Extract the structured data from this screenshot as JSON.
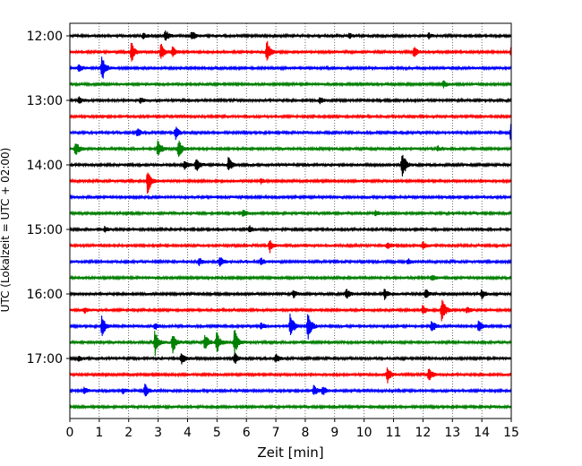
{
  "chart_data": {
    "type": "line",
    "title": "",
    "xlabel": "Zeit  [min]",
    "ylabel": "UTC (Lokalzeit = UTC + 02:00)",
    "xlim": [
      0,
      15
    ],
    "x_ticks": [
      "0",
      "1",
      "2",
      "3",
      "4",
      "5",
      "6",
      "7",
      "8",
      "9",
      "10",
      "11",
      "12",
      "13",
      "14",
      "15"
    ],
    "y_tick_labels": [
      "12:00",
      "13:00",
      "14:00",
      "15:00",
      "16:00",
      "17:00"
    ],
    "grid": "vertical dotted at each minute",
    "trace_interval_min": 15,
    "trace_colors": [
      "#000000",
      "#ff0000",
      "#0000ff",
      "#008000"
    ],
    "traces": [
      {
        "start": "12:00",
        "color": "#000000",
        "events": [
          [
            3.25,
            7
          ],
          [
            4.15,
            6
          ],
          [
            2.5,
            3
          ],
          [
            9.5,
            3
          ],
          [
            12.2,
            3
          ]
        ]
      },
      {
        "start": "12:15",
        "color": "#ff0000",
        "events": [
          [
            2.1,
            11
          ],
          [
            3.1,
            9
          ],
          [
            3.5,
            6
          ],
          [
            6.7,
            13
          ],
          [
            11.7,
            6
          ],
          [
            15,
            6
          ]
        ]
      },
      {
        "start": "12:30",
        "color": "#0000ff",
        "events": [
          [
            1.1,
            15
          ],
          [
            0.3,
            4
          ]
        ]
      },
      {
        "start": "12:45",
        "color": "#008000",
        "events": [
          [
            12.7,
            4
          ]
        ]
      },
      {
        "start": "13:00",
        "color": "#000000",
        "events": [
          [
            0.3,
            4
          ],
          [
            2.4,
            3
          ],
          [
            8.5,
            3
          ]
        ]
      },
      {
        "start": "13:15",
        "color": "#ff0000",
        "events": []
      },
      {
        "start": "13:30",
        "color": "#0000ff",
        "events": [
          [
            2.3,
            5
          ],
          [
            3.6,
            7
          ],
          [
            15,
            16
          ]
        ]
      },
      {
        "start": "13:45",
        "color": "#008000",
        "events": [
          [
            0.2,
            10
          ],
          [
            3.0,
            10
          ],
          [
            3.7,
            11
          ],
          [
            12.5,
            3
          ]
        ]
      },
      {
        "start": "14:00",
        "color": "#000000",
        "events": [
          [
            4.3,
            8
          ],
          [
            5.4,
            9
          ],
          [
            11.3,
            18
          ],
          [
            3.9,
            5
          ]
        ]
      },
      {
        "start": "14:15",
        "color": "#ff0000",
        "events": [
          [
            2.65,
            16
          ],
          [
            6.5,
            3
          ]
        ]
      },
      {
        "start": "14:30",
        "color": "#0000ff",
        "events": []
      },
      {
        "start": "14:45",
        "color": "#008000",
        "events": [
          [
            5.9,
            5
          ],
          [
            10.4,
            3
          ]
        ]
      },
      {
        "start": "15:00",
        "color": "#000000",
        "events": [
          [
            6.1,
            4
          ],
          [
            1.2,
            3
          ]
        ]
      },
      {
        "start": "15:15",
        "color": "#ff0000",
        "events": [
          [
            6.8,
            7
          ],
          [
            10.8,
            4
          ],
          [
            12,
            4
          ]
        ]
      },
      {
        "start": "15:30",
        "color": "#0000ff",
        "events": [
          [
            5.1,
            7
          ],
          [
            4.4,
            4
          ],
          [
            6.5,
            4
          ],
          [
            11.5,
            3
          ]
        ]
      },
      {
        "start": "15:45",
        "color": "#008000",
        "events": [
          [
            12.3,
            3
          ]
        ]
      },
      {
        "start": "16:00",
        "color": "#000000",
        "events": [
          [
            9.4,
            6
          ],
          [
            10.7,
            6
          ],
          [
            12.1,
            6
          ],
          [
            14.0,
            6
          ],
          [
            7.6,
            4
          ]
        ]
      },
      {
        "start": "16:15",
        "color": "#ff0000",
        "events": [
          [
            12.65,
            15
          ],
          [
            12.0,
            5
          ],
          [
            13.5,
            4
          ],
          [
            0.5,
            3
          ]
        ]
      },
      {
        "start": "16:30",
        "color": "#0000ff",
        "events": [
          [
            1.1,
            13
          ],
          [
            7.5,
            15
          ],
          [
            8.1,
            17
          ],
          [
            12.3,
            7
          ],
          [
            13.9,
            8
          ],
          [
            2.9,
            4
          ],
          [
            6.5,
            4
          ]
        ]
      },
      {
        "start": "16:45",
        "color": "#008000",
        "events": [
          [
            2.9,
            14
          ],
          [
            3.5,
            13
          ],
          [
            4.6,
            10
          ],
          [
            5.0,
            12
          ],
          [
            5.6,
            15
          ]
        ]
      },
      {
        "start": "17:00",
        "color": "#000000",
        "events": [
          [
            3.8,
            7
          ],
          [
            5.6,
            7
          ],
          [
            7.0,
            6
          ],
          [
            0.3,
            3
          ]
        ]
      },
      {
        "start": "17:15",
        "color": "#ff0000",
        "events": [
          [
            10.8,
            9
          ],
          [
            12.2,
            8
          ]
        ]
      },
      {
        "start": "17:30",
        "color": "#0000ff",
        "events": [
          [
            2.55,
            8
          ],
          [
            1.8,
            3
          ],
          [
            8.3,
            6
          ],
          [
            8.6,
            5
          ],
          [
            0.5,
            4
          ]
        ]
      },
      {
        "start": "17:45",
        "color": "#008000",
        "events": []
      }
    ]
  }
}
